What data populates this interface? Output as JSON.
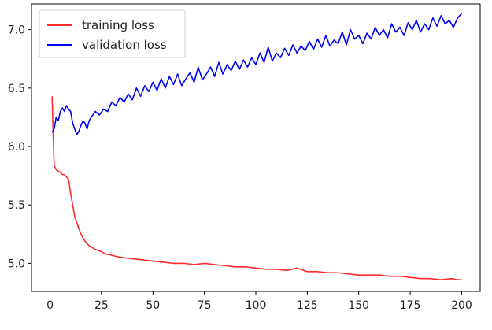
{
  "chart_data": {
    "type": "line",
    "title": "",
    "xlabel": "",
    "ylabel": "",
    "xlim": [
      -9,
      209
    ],
    "ylim": [
      4.76,
      7.22
    ],
    "xticks": [
      0,
      25,
      50,
      75,
      100,
      125,
      150,
      175,
      200
    ],
    "yticks": [
      5.0,
      5.5,
      6.0,
      6.5,
      7.0
    ],
    "xtick_labels": [
      "0",
      "25",
      "50",
      "75",
      "100",
      "125",
      "150",
      "175",
      "200"
    ],
    "ytick_labels": [
      "5.0",
      "5.5",
      "6.0",
      "6.5",
      "7.0"
    ],
    "grid": false,
    "legend_position": "top-left",
    "series": [
      {
        "name": "training loss",
        "color": "#ff2a2a",
        "x": [
          1,
          2,
          3,
          4,
          5,
          6,
          7,
          8,
          9,
          10,
          11,
          12,
          13,
          14,
          15,
          16,
          17,
          18,
          19,
          20,
          22,
          25,
          27,
          30,
          32,
          35,
          40,
          45,
          50,
          55,
          60,
          65,
          70,
          75,
          80,
          85,
          90,
          95,
          100,
          105,
          110,
          115,
          120,
          125,
          130,
          135,
          140,
          145,
          150,
          155,
          160,
          165,
          170,
          175,
          180,
          185,
          190,
          195,
          198,
          200
        ],
        "y": [
          6.43,
          5.84,
          5.8,
          5.79,
          5.78,
          5.76,
          5.76,
          5.74,
          5.72,
          5.6,
          5.5,
          5.4,
          5.35,
          5.3,
          5.25,
          5.22,
          5.19,
          5.17,
          5.15,
          5.14,
          5.12,
          5.1,
          5.08,
          5.07,
          5.06,
          5.05,
          5.04,
          5.03,
          5.02,
          5.01,
          5.0,
          5.0,
          4.99,
          5.0,
          4.99,
          4.98,
          4.97,
          4.97,
          4.96,
          4.95,
          4.95,
          4.94,
          4.96,
          4.93,
          4.93,
          4.92,
          4.92,
          4.91,
          4.9,
          4.9,
          4.9,
          4.89,
          4.89,
          4.88,
          4.87,
          4.87,
          4.86,
          4.87,
          4.86,
          4.86
        ]
      },
      {
        "name": "validation loss",
        "color": "#0000ff",
        "x": [
          1,
          2,
          3,
          4,
          5,
          6,
          7,
          8,
          9,
          10,
          11,
          12,
          13,
          14,
          15,
          16,
          17,
          18,
          19,
          20,
          22,
          24,
          26,
          28,
          30,
          32,
          34,
          36,
          38,
          40,
          42,
          44,
          46,
          48,
          50,
          52,
          54,
          56,
          58,
          60,
          62,
          64,
          66,
          68,
          70,
          72,
          74,
          76,
          78,
          80,
          82,
          84,
          86,
          88,
          90,
          92,
          94,
          96,
          98,
          100,
          102,
          104,
          106,
          108,
          110,
          112,
          114,
          116,
          118,
          120,
          122,
          124,
          126,
          128,
          130,
          132,
          134,
          136,
          138,
          140,
          142,
          144,
          146,
          148,
          150,
          152,
          154,
          156,
          158,
          160,
          162,
          164,
          166,
          168,
          170,
          172,
          174,
          176,
          178,
          180,
          182,
          184,
          186,
          188,
          190,
          192,
          194,
          196,
          198,
          200
        ],
        "y": [
          6.12,
          6.15,
          6.25,
          6.22,
          6.3,
          6.33,
          6.3,
          6.35,
          6.32,
          6.3,
          6.2,
          6.15,
          6.1,
          6.13,
          6.18,
          6.22,
          6.2,
          6.15,
          6.22,
          6.25,
          6.3,
          6.27,
          6.32,
          6.3,
          6.38,
          6.35,
          6.42,
          6.38,
          6.45,
          6.4,
          6.5,
          6.43,
          6.52,
          6.47,
          6.55,
          6.48,
          6.58,
          6.5,
          6.6,
          6.53,
          6.62,
          6.52,
          6.58,
          6.63,
          6.55,
          6.68,
          6.57,
          6.62,
          6.68,
          6.6,
          6.72,
          6.62,
          6.7,
          6.65,
          6.73,
          6.66,
          6.74,
          6.68,
          6.76,
          6.7,
          6.8,
          6.72,
          6.85,
          6.73,
          6.8,
          6.76,
          6.84,
          6.78,
          6.87,
          6.8,
          6.86,
          6.82,
          6.9,
          6.83,
          6.92,
          6.85,
          6.95,
          6.86,
          6.91,
          6.88,
          6.98,
          6.87,
          7.0,
          6.92,
          6.95,
          6.88,
          6.97,
          6.92,
          7.02,
          6.95,
          7.0,
          6.93,
          7.05,
          6.98,
          7.02,
          6.95,
          7.06,
          7.0,
          7.08,
          6.98,
          7.05,
          7.0,
          7.1,
          7.03,
          7.12,
          7.05,
          7.08,
          7.02,
          7.1,
          7.14
        ]
      }
    ]
  }
}
